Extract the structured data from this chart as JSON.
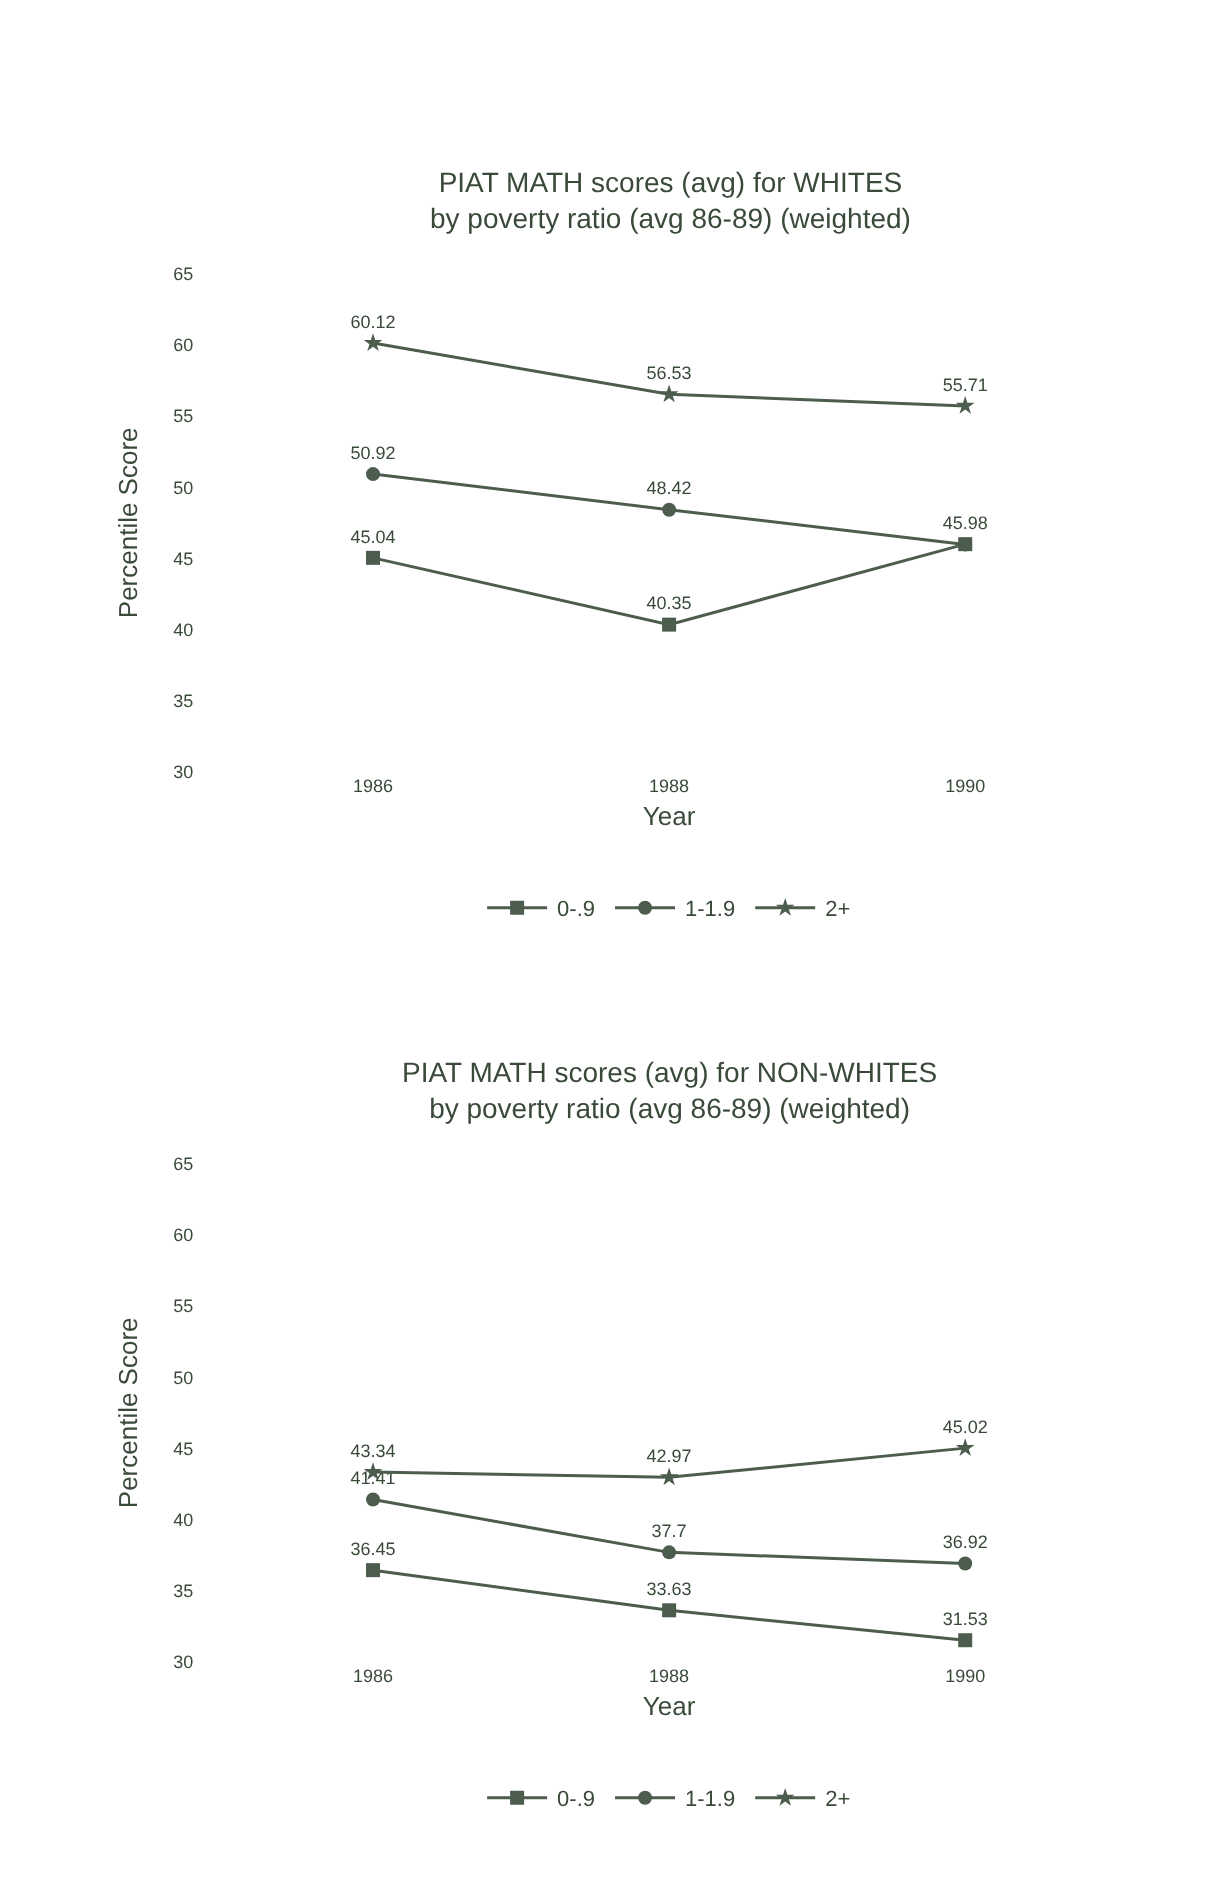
{
  "chart_data": [
    {
      "type": "line",
      "title": "PIAT MATH scores (avg) for WHITES\nby poverty ratio (avg 86-89) (weighted)",
      "xlabel": "Year",
      "ylabel": "Percentile Score",
      "categories": [
        "1986",
        "1988",
        "1990"
      ],
      "ylim": [
        30,
        65
      ],
      "yticks": [
        30,
        35,
        40,
        45,
        50,
        55,
        60,
        65
      ],
      "legend": "bottom",
      "series": [
        {
          "name": "0-.9",
          "color": "#4d5d4d",
          "marker": "square",
          "values": [
            45.04,
            40.35,
            46.0
          ],
          "value_labels": [
            "45.04",
            "40.35",
            null
          ]
        },
        {
          "name": "1-1.9",
          "color": "#4d5d4d",
          "marker": "circle",
          "values": [
            50.92,
            48.42,
            45.98
          ],
          "value_labels": [
            "50.92",
            "48.42",
            "45.98"
          ]
        },
        {
          "name": "2+",
          "color": "#4d5d4d",
          "marker": "star",
          "values": [
            60.12,
            56.53,
            55.71
          ],
          "value_labels": [
            "60.12",
            "56.53",
            "55.71"
          ]
        }
      ]
    },
    {
      "type": "line",
      "title": "PIAT MATH scores (avg) for NON-WHITES\nby poverty ratio (avg 86-89) (weighted)",
      "xlabel": "Year",
      "ylabel": "Percentile Score",
      "categories": [
        "1986",
        "1988",
        "1990"
      ],
      "ylim": [
        30,
        65
      ],
      "yticks": [
        30,
        35,
        40,
        45,
        50,
        55,
        60,
        65
      ],
      "legend": "bottom",
      "data_labels": true,
      "series": [
        {
          "name": "0-.9",
          "color": "#4d5d4d",
          "marker": "square",
          "values": [
            36.45,
            33.63,
            31.53
          ]
        },
        {
          "name": "1-1.9",
          "color": "#4d5d4d",
          "marker": "circle",
          "values": [
            41.41,
            37.7,
            36.92
          ]
        },
        {
          "name": "2+",
          "color": "#4d5d4d",
          "marker": "star",
          "values": [
            43.34,
            42.97,
            45.02
          ]
        }
      ]
    }
  ]
}
